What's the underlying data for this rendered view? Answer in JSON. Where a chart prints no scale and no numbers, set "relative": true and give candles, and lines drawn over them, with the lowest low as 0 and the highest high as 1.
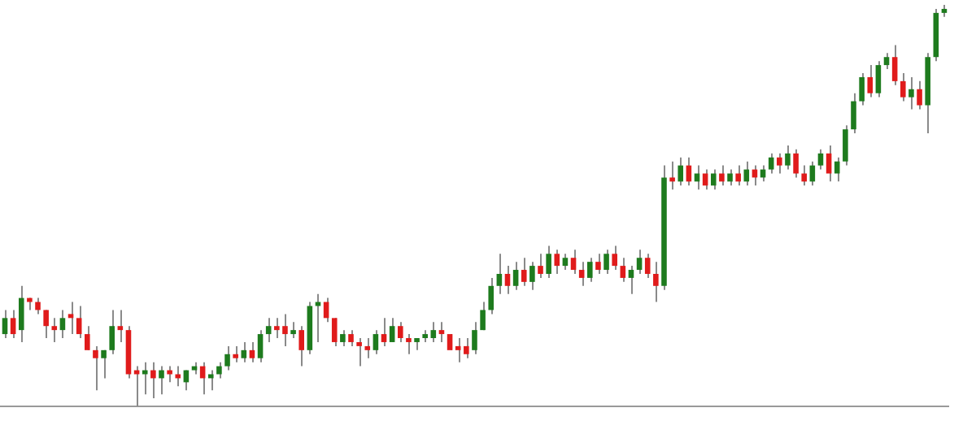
{
  "chart_data": {
    "type": "candlestick",
    "relative": true,
    "legend": false,
    "grid": false,
    "categories": [
      null,
      null,
      null,
      null,
      null,
      null,
      null,
      null,
      null,
      null,
      null,
      null,
      null,
      null,
      null,
      null,
      null,
      null,
      null,
      null,
      null,
      null,
      null,
      null,
      null,
      null,
      null,
      null,
      null,
      null,
      null,
      null,
      null,
      null,
      null,
      null,
      null,
      null,
      null,
      null,
      null,
      null,
      null,
      null,
      null,
      null,
      null,
      null,
      null,
      null,
      null,
      null,
      null,
      null,
      null,
      null,
      null,
      null,
      null,
      null,
      null,
      null,
      null,
      null,
      null,
      null,
      null,
      null,
      null,
      null,
      null,
      null,
      null,
      null,
      null,
      null,
      null,
      null,
      null,
      null,
      null,
      null,
      null,
      null,
      null,
      null,
      null,
      null,
      null,
      null,
      null,
      null,
      null,
      null,
      null,
      null,
      null,
      null,
      null,
      null,
      null,
      null,
      null,
      null,
      null,
      null,
      null,
      null,
      null,
      null,
      null,
      null,
      null,
      null,
      null
    ],
    "ohlc": [
      [
        0.18,
        0.24,
        0.17,
        0.22
      ],
      [
        0.22,
        0.24,
        0.17,
        0.18
      ],
      [
        0.19,
        0.3,
        0.16,
        0.27
      ],
      [
        0.27,
        0.27,
        0.24,
        0.26
      ],
      [
        0.26,
        0.27,
        0.23,
        0.24
      ],
      [
        0.24,
        0.24,
        0.17,
        0.2
      ],
      [
        0.2,
        0.22,
        0.16,
        0.19
      ],
      [
        0.19,
        0.24,
        0.17,
        0.22
      ],
      [
        0.23,
        0.26,
        0.18,
        0.22
      ],
      [
        0.22,
        0.25,
        0.17,
        0.18
      ],
      [
        0.18,
        0.2,
        0.14,
        0.14
      ],
      [
        0.14,
        0.15,
        0.04,
        0.12
      ],
      [
        0.12,
        0.14,
        0.07,
        0.14
      ],
      [
        0.14,
        0.24,
        0.13,
        0.2
      ],
      [
        0.2,
        0.24,
        0.16,
        0.19
      ],
      [
        0.19,
        0.2,
        0.07,
        0.08
      ],
      [
        0.09,
        0.1,
        0.0,
        0.08
      ],
      [
        0.08,
        0.11,
        0.03,
        0.09
      ],
      [
        0.09,
        0.11,
        0.02,
        0.07
      ],
      [
        0.07,
        0.1,
        0.03,
        0.09
      ],
      [
        0.09,
        0.1,
        0.06,
        0.08
      ],
      [
        0.08,
        0.1,
        0.05,
        0.07
      ],
      [
        0.06,
        0.09,
        0.04,
        0.09
      ],
      [
        0.09,
        0.11,
        0.08,
        0.1
      ],
      [
        0.1,
        0.11,
        0.03,
        0.07
      ],
      [
        0.07,
        0.09,
        0.04,
        0.08
      ],
      [
        0.08,
        0.11,
        0.07,
        0.1
      ],
      [
        0.1,
        0.15,
        0.09,
        0.13
      ],
      [
        0.13,
        0.15,
        0.11,
        0.12
      ],
      [
        0.12,
        0.16,
        0.11,
        0.14
      ],
      [
        0.14,
        0.16,
        0.11,
        0.12
      ],
      [
        0.12,
        0.19,
        0.11,
        0.18
      ],
      [
        0.18,
        0.22,
        0.16,
        0.2
      ],
      [
        0.2,
        0.22,
        0.17,
        0.19
      ],
      [
        0.2,
        0.23,
        0.15,
        0.18
      ],
      [
        0.18,
        0.21,
        0.17,
        0.19
      ],
      [
        0.19,
        0.2,
        0.1,
        0.14
      ],
      [
        0.14,
        0.26,
        0.13,
        0.25
      ],
      [
        0.25,
        0.28,
        0.16,
        0.26
      ],
      [
        0.26,
        0.27,
        0.21,
        0.22
      ],
      [
        0.22,
        0.22,
        0.15,
        0.16
      ],
      [
        0.16,
        0.19,
        0.15,
        0.18
      ],
      [
        0.18,
        0.19,
        0.15,
        0.16
      ],
      [
        0.16,
        0.17,
        0.1,
        0.15
      ],
      [
        0.15,
        0.17,
        0.12,
        0.14
      ],
      [
        0.14,
        0.19,
        0.13,
        0.18
      ],
      [
        0.18,
        0.22,
        0.15,
        0.16
      ],
      [
        0.16,
        0.22,
        0.16,
        0.2
      ],
      [
        0.2,
        0.21,
        0.16,
        0.17
      ],
      [
        0.17,
        0.18,
        0.13,
        0.16
      ],
      [
        0.16,
        0.17,
        0.14,
        0.17
      ],
      [
        0.17,
        0.19,
        0.16,
        0.18
      ],
      [
        0.17,
        0.21,
        0.16,
        0.19
      ],
      [
        0.19,
        0.21,
        0.16,
        0.18
      ],
      [
        0.18,
        0.18,
        0.14,
        0.14
      ],
      [
        0.15,
        0.17,
        0.11,
        0.14
      ],
      [
        0.15,
        0.17,
        0.12,
        0.13
      ],
      [
        0.14,
        0.21,
        0.13,
        0.19
      ],
      [
        0.19,
        0.26,
        0.19,
        0.24
      ],
      [
        0.24,
        0.32,
        0.23,
        0.3
      ],
      [
        0.3,
        0.38,
        0.28,
        0.33
      ],
      [
        0.33,
        0.35,
        0.28,
        0.3
      ],
      [
        0.3,
        0.36,
        0.29,
        0.34
      ],
      [
        0.34,
        0.37,
        0.3,
        0.31
      ],
      [
        0.31,
        0.36,
        0.29,
        0.35
      ],
      [
        0.35,
        0.38,
        0.32,
        0.33
      ],
      [
        0.33,
        0.4,
        0.32,
        0.38
      ],
      [
        0.38,
        0.39,
        0.33,
        0.35
      ],
      [
        0.35,
        0.38,
        0.34,
        0.37
      ],
      [
        0.37,
        0.39,
        0.33,
        0.34
      ],
      [
        0.34,
        0.36,
        0.3,
        0.32
      ],
      [
        0.32,
        0.37,
        0.31,
        0.36
      ],
      [
        0.36,
        0.38,
        0.33,
        0.34
      ],
      [
        0.34,
        0.39,
        0.33,
        0.38
      ],
      [
        0.38,
        0.4,
        0.34,
        0.35
      ],
      [
        0.35,
        0.37,
        0.31,
        0.32
      ],
      [
        0.32,
        0.35,
        0.28,
        0.34
      ],
      [
        0.34,
        0.39,
        0.33,
        0.37
      ],
      [
        0.37,
        0.38,
        0.32,
        0.33
      ],
      [
        0.33,
        0.36,
        0.26,
        0.3
      ],
      [
        0.3,
        0.6,
        0.29,
        0.57
      ],
      [
        0.57,
        0.61,
        0.54,
        0.56
      ],
      [
        0.56,
        0.62,
        0.55,
        0.6
      ],
      [
        0.6,
        0.62,
        0.55,
        0.56
      ],
      [
        0.56,
        0.6,
        0.54,
        0.58
      ],
      [
        0.58,
        0.59,
        0.54,
        0.55
      ],
      [
        0.55,
        0.59,
        0.54,
        0.58
      ],
      [
        0.58,
        0.6,
        0.55,
        0.56
      ],
      [
        0.56,
        0.59,
        0.55,
        0.58
      ],
      [
        0.58,
        0.6,
        0.55,
        0.56
      ],
      [
        0.56,
        0.61,
        0.55,
        0.59
      ],
      [
        0.59,
        0.6,
        0.55,
        0.57
      ],
      [
        0.57,
        0.6,
        0.56,
        0.59
      ],
      [
        0.59,
        0.63,
        0.58,
        0.62
      ],
      [
        0.62,
        0.63,
        0.58,
        0.6
      ],
      [
        0.6,
        0.65,
        0.59,
        0.63
      ],
      [
        0.63,
        0.64,
        0.57,
        0.58
      ],
      [
        0.58,
        0.6,
        0.55,
        0.56
      ],
      [
        0.56,
        0.61,
        0.55,
        0.6
      ],
      [
        0.6,
        0.64,
        0.59,
        0.63
      ],
      [
        0.63,
        0.65,
        0.56,
        0.58
      ],
      [
        0.58,
        0.62,
        0.56,
        0.61
      ],
      [
        0.61,
        0.7,
        0.6,
        0.69
      ],
      [
        0.69,
        0.78,
        0.68,
        0.76
      ],
      [
        0.76,
        0.83,
        0.75,
        0.82
      ],
      [
        0.82,
        0.85,
        0.77,
        0.78
      ],
      [
        0.78,
        0.86,
        0.77,
        0.85
      ],
      [
        0.85,
        0.88,
        0.84,
        0.87
      ],
      [
        0.87,
        0.9,
        0.8,
        0.81
      ],
      [
        0.81,
        0.83,
        0.76,
        0.77
      ],
      [
        0.77,
        0.82,
        0.74,
        0.79
      ],
      [
        0.79,
        0.81,
        0.74,
        0.75
      ],
      [
        0.75,
        0.88,
        0.68,
        0.87
      ],
      [
        0.87,
        0.99,
        0.86,
        0.98
      ],
      [
        0.98,
        1.0,
        0.97,
        0.99
      ]
    ],
    "colors": [
      "#1e7b1e",
      "#e01b1b",
      "#1e7b1e",
      "#e01b1b",
      "#e01b1b",
      "#e01b1b",
      "#e01b1b",
      "#1e7b1e",
      "#e01b1b",
      "#e01b1b",
      "#e01b1b",
      "#e01b1b",
      "#1e7b1e",
      "#1e7b1e",
      "#e01b1b",
      "#e01b1b",
      "#e01b1b",
      "#1e7b1e",
      "#e01b1b",
      "#1e7b1e",
      "#e01b1b",
      "#e01b1b",
      "#1e7b1e",
      "#1e7b1e",
      "#e01b1b",
      "#1e7b1e",
      "#1e7b1e",
      "#1e7b1e",
      "#e01b1b",
      "#1e7b1e",
      "#e01b1b",
      "#1e7b1e",
      "#1e7b1e",
      "#e01b1b",
      "#e01b1b",
      "#1e7b1e",
      "#e01b1b",
      "#1e7b1e",
      "#1e7b1e",
      "#e01b1b",
      "#e01b1b",
      "#1e7b1e",
      "#e01b1b",
      "#e01b1b",
      "#e01b1b",
      "#1e7b1e",
      "#e01b1b",
      "#1e7b1e",
      "#e01b1b",
      "#e01b1b",
      "#1e7b1e",
      "#1e7b1e",
      "#1e7b1e",
      "#e01b1b",
      "#e01b1b",
      "#e01b1b",
      "#e01b1b",
      "#1e7b1e",
      "#1e7b1e",
      "#1e7b1e",
      "#1e7b1e",
      "#e01b1b",
      "#1e7b1e",
      "#e01b1b",
      "#1e7b1e",
      "#e01b1b",
      "#1e7b1e",
      "#e01b1b",
      "#1e7b1e",
      "#e01b1b",
      "#e01b1b",
      "#1e7b1e",
      "#e01b1b",
      "#1e7b1e",
      "#e01b1b",
      "#e01b1b",
      "#1e7b1e",
      "#1e7b1e",
      "#e01b1b",
      "#e01b1b",
      "#1e7b1e",
      "#e01b1b",
      "#1e7b1e",
      "#e01b1b",
      "#1e7b1e",
      "#e01b1b",
      "#1e7b1e",
      "#e01b1b",
      "#1e7b1e",
      "#e01b1b",
      "#1e7b1e",
      "#e01b1b",
      "#1e7b1e",
      "#1e7b1e",
      "#e01b1b",
      "#1e7b1e",
      "#e01b1b",
      "#e01b1b",
      "#1e7b1e",
      "#1e7b1e",
      "#e01b1b",
      "#1e7b1e",
      "#1e7b1e",
      "#1e7b1e",
      "#1e7b1e",
      "#e01b1b",
      "#1e7b1e",
      "#1e7b1e",
      "#e01b1b",
      "#e01b1b",
      "#1e7b1e",
      "#e01b1b",
      "#1e7b1e",
      "#1e7b1e",
      "#1e7b1e"
    ]
  }
}
